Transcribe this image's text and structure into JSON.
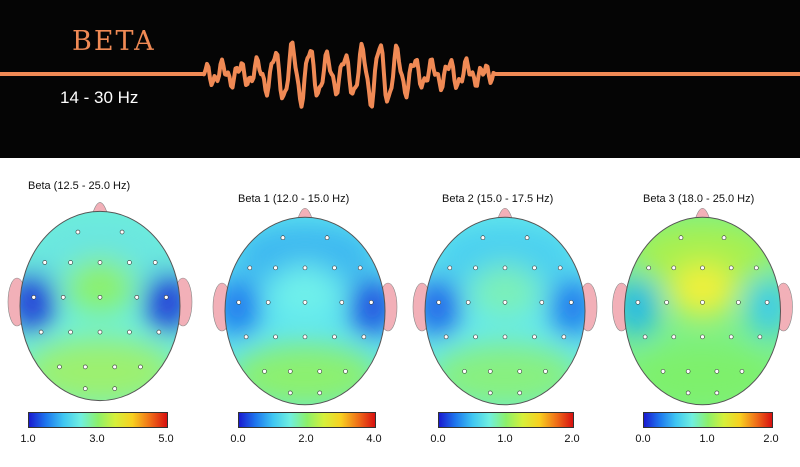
{
  "banner": {
    "title": "BETA",
    "range": "14 - 30 Hz",
    "wave_color": "#f08a55"
  },
  "colormap": [
    "#1a1ad0",
    "#1e78ee",
    "#3fc6f2",
    "#6fefe0",
    "#8cf06a",
    "#d6f03a",
    "#f8d020",
    "#f07018",
    "#d81010"
  ],
  "maps": [
    {
      "title": "Beta (12.5 - 25.0 Hz)",
      "ticks": [
        "1.0",
        "3.0",
        "5.0"
      ],
      "base_color": "#6ff0d8",
      "regions": {
        "center": "#8cf06a",
        "left": "#1a38d8",
        "right": "#1a38d8",
        "bottom": "#9cf070",
        "top": "#6ae6e0"
      }
    },
    {
      "title": "Beta 1 (12.0 - 15.0 Hz)",
      "ticks": [
        "0.0",
        "2.0",
        "4.0"
      ],
      "base_color": "#5fe6ee",
      "regions": {
        "center": "#6ff0ea",
        "left": "#1e78ee",
        "right": "#1e50e0",
        "bottom": "#8cf070",
        "top": "#3cb8f0"
      }
    },
    {
      "title": "Beta 2 (15.0 - 17.5 Hz)",
      "ticks": [
        "0.0",
        "1.0",
        "2.0"
      ],
      "base_color": "#66eaea",
      "regions": {
        "center": "#7cf0b8",
        "left": "#1e64ea",
        "right": "#1e78ee",
        "bottom": "#88f080",
        "top": "#4cd0f0"
      }
    },
    {
      "title": "Beta 3 (18.0 - 25.0 Hz)",
      "ticks": [
        "0.0",
        "1.0",
        "2.0"
      ],
      "base_color": "#7cf08a",
      "regions": {
        "center": "#f0f03a",
        "left": "#28b8e8",
        "right": "#3ccaea",
        "bottom": "#7ef06c",
        "top": "#a8f050"
      }
    }
  ]
}
